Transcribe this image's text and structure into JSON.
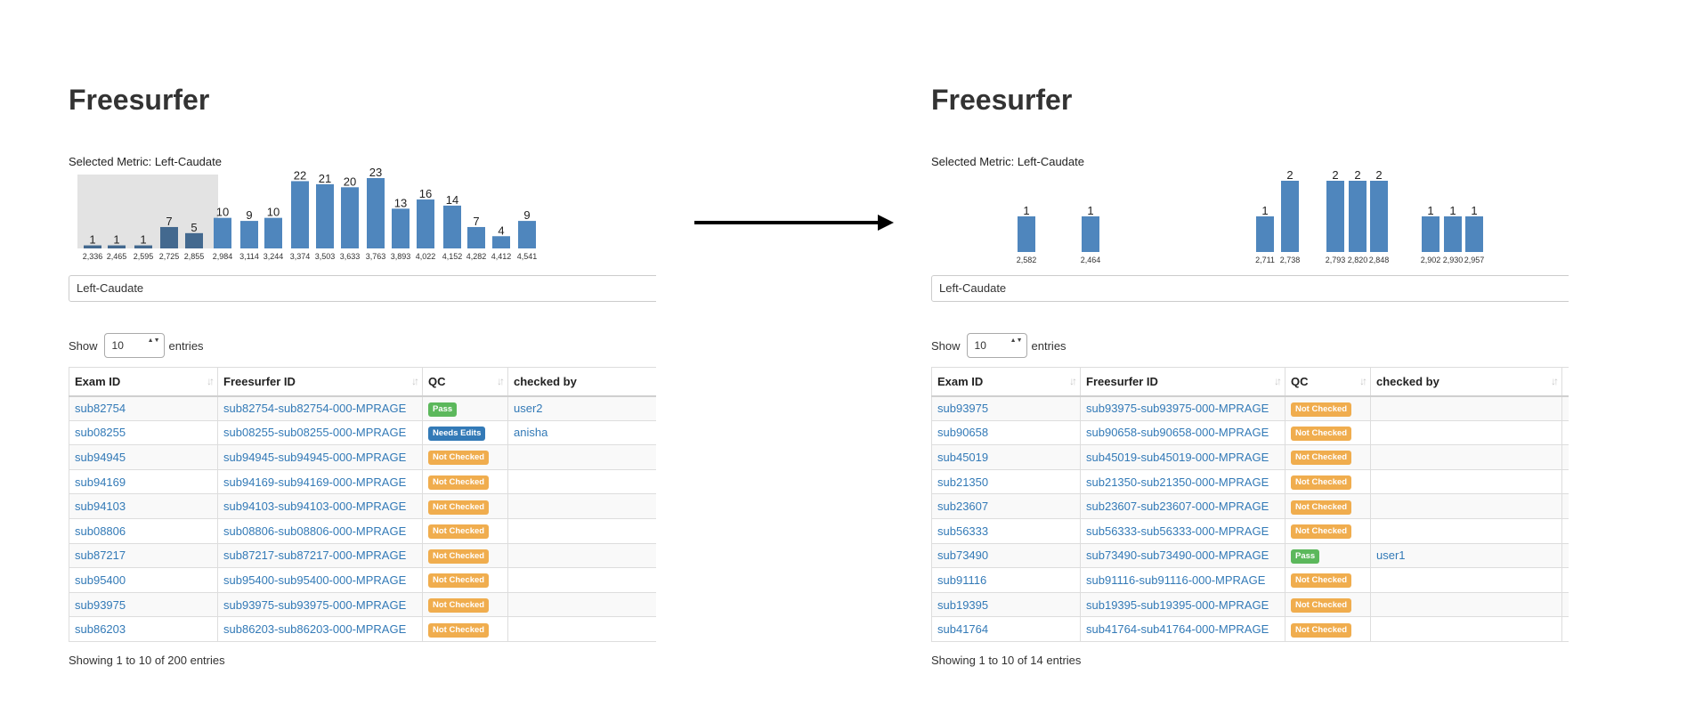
{
  "colors": {
    "bar": "#4f86bd",
    "bar_selected": "#43698f",
    "brush": "#e3e3e3",
    "link": "#337ab7",
    "pass": "#5cb85c",
    "needs_edits": "#337ab7",
    "not_checked": "#f0ad4e"
  },
  "panels": [
    {
      "title": "Freesurfer",
      "metric_label": "Selected Metric: Left-Caudate",
      "histogram": [
        {
          "count": "1",
          "tick": "2,336",
          "value": 1,
          "selected": true
        },
        {
          "count": "1",
          "tick": "2,465",
          "value": 1,
          "selected": true
        },
        {
          "count": "1",
          "tick": "2,595",
          "value": 1,
          "selected": true
        },
        {
          "count": "7",
          "tick": "2,725",
          "value": 7,
          "selected": true
        },
        {
          "count": "5",
          "tick": "2,855",
          "value": 5,
          "selected": true
        },
        {
          "count": "10",
          "tick": "2,984",
          "value": 10,
          "selected": false
        },
        {
          "count": "9",
          "tick": "3,114",
          "value": 9,
          "selected": false
        },
        {
          "count": "10",
          "tick": "3,244",
          "value": 10,
          "selected": false
        },
        {
          "count": "22",
          "tick": "3,374",
          "value": 22,
          "selected": false
        },
        {
          "count": "21",
          "tick": "3,503",
          "value": 21,
          "selected": false
        },
        {
          "count": "20",
          "tick": "3,633",
          "value": 20,
          "selected": false
        },
        {
          "count": "23",
          "tick": "3,763",
          "value": 23,
          "selected": false
        },
        {
          "count": "13",
          "tick": "3,893",
          "value": 13,
          "selected": false
        },
        {
          "count": "16",
          "tick": "4,022",
          "value": 16,
          "selected": false
        },
        {
          "count": "14",
          "tick": "4,152",
          "value": 14,
          "selected": false
        },
        {
          "count": "7",
          "tick": "4,282",
          "value": 7,
          "selected": false
        },
        {
          "count": "4",
          "tick": "4,412",
          "value": 4,
          "selected": false
        },
        {
          "count": "9",
          "tick": "4,541",
          "value": 9,
          "selected": false
        }
      ],
      "metric_select": "Left-Caudate",
      "length": {
        "show": "Show",
        "value": "10",
        "entries": "entries"
      },
      "columns": [
        "Exam ID",
        "Freesurfer ID",
        "QC",
        "checked by"
      ],
      "rows": [
        {
          "exam": "sub82754",
          "fs": "sub82754-sub82754-000-MPRAGE",
          "qc": "Pass",
          "qc_type": "pass",
          "by": "user2"
        },
        {
          "exam": "sub08255",
          "fs": "sub08255-sub08255-000-MPRAGE",
          "qc": "Needs Edits",
          "qc_type": "needs_edits",
          "by": "anisha"
        },
        {
          "exam": "sub94945",
          "fs": "sub94945-sub94945-000-MPRAGE",
          "qc": "Not Checked",
          "qc_type": "not_checked",
          "by": ""
        },
        {
          "exam": "sub94169",
          "fs": "sub94169-sub94169-000-MPRAGE",
          "qc": "Not Checked",
          "qc_type": "not_checked",
          "by": ""
        },
        {
          "exam": "sub94103",
          "fs": "sub94103-sub94103-000-MPRAGE",
          "qc": "Not Checked",
          "qc_type": "not_checked",
          "by": ""
        },
        {
          "exam": "sub08806",
          "fs": "sub08806-sub08806-000-MPRAGE",
          "qc": "Not Checked",
          "qc_type": "not_checked",
          "by": ""
        },
        {
          "exam": "sub87217",
          "fs": "sub87217-sub87217-000-MPRAGE",
          "qc": "Not Checked",
          "qc_type": "not_checked",
          "by": ""
        },
        {
          "exam": "sub95400",
          "fs": "sub95400-sub95400-000-MPRAGE",
          "qc": "Not Checked",
          "qc_type": "not_checked",
          "by": ""
        },
        {
          "exam": "sub93975",
          "fs": "sub93975-sub93975-000-MPRAGE",
          "qc": "Not Checked",
          "qc_type": "not_checked",
          "by": ""
        },
        {
          "exam": "sub86203",
          "fs": "sub86203-sub86203-000-MPRAGE",
          "qc": "Not Checked",
          "qc_type": "not_checked",
          "by": ""
        }
      ],
      "info": "Showing 1 to 10 of 200 entries"
    },
    {
      "title": "Freesurfer",
      "metric_label": "Selected Metric: Left-Caudate",
      "histogram": [
        {
          "count": "1",
          "tick": "2,582",
          "value": 1,
          "selected": false
        },
        {
          "count": "1",
          "tick": "2,464",
          "value": 1,
          "selected": false
        },
        {
          "count": "1",
          "tick": "2,711",
          "value": 1,
          "selected": false
        },
        {
          "count": "2",
          "tick": "2,738",
          "value": 2,
          "selected": false
        },
        {
          "count": "2",
          "tick": "2,793",
          "value": 2,
          "selected": false
        },
        {
          "count": "2",
          "tick": "2,820",
          "value": 2,
          "selected": false
        },
        {
          "count": "2",
          "tick": "2,848",
          "value": 2,
          "selected": false
        },
        {
          "count": "1",
          "tick": "2,902",
          "value": 1,
          "selected": false
        },
        {
          "count": "1",
          "tick": "2,930",
          "value": 1,
          "selected": false
        },
        {
          "count": "1",
          "tick": "2,957",
          "value": 1,
          "selected": false
        }
      ],
      "metric_select": "Left-Caudate",
      "length": {
        "show": "Show",
        "value": "10",
        "entries": "entries"
      },
      "columns": [
        "Exam ID",
        "Freesurfer ID",
        "QC",
        "checked by"
      ],
      "rows": [
        {
          "exam": "sub93975",
          "fs": "sub93975-sub93975-000-MPRAGE",
          "qc": "Not Checked",
          "qc_type": "not_checked",
          "by": ""
        },
        {
          "exam": "sub90658",
          "fs": "sub90658-sub90658-000-MPRAGE",
          "qc": "Not Checked",
          "qc_type": "not_checked",
          "by": ""
        },
        {
          "exam": "sub45019",
          "fs": "sub45019-sub45019-000-MPRAGE",
          "qc": "Not Checked",
          "qc_type": "not_checked",
          "by": ""
        },
        {
          "exam": "sub21350",
          "fs": "sub21350-sub21350-000-MPRAGE",
          "qc": "Not Checked",
          "qc_type": "not_checked",
          "by": ""
        },
        {
          "exam": "sub23607",
          "fs": "sub23607-sub23607-000-MPRAGE",
          "qc": "Not Checked",
          "qc_type": "not_checked",
          "by": ""
        },
        {
          "exam": "sub56333",
          "fs": "sub56333-sub56333-000-MPRAGE",
          "qc": "Not Checked",
          "qc_type": "not_checked",
          "by": ""
        },
        {
          "exam": "sub73490",
          "fs": "sub73490-sub73490-000-MPRAGE",
          "qc": "Pass",
          "qc_type": "pass",
          "by": "user1"
        },
        {
          "exam": "sub91116",
          "fs": "sub91116-sub91116-000-MPRAGE",
          "qc": "Not Checked",
          "qc_type": "not_checked",
          "by": ""
        },
        {
          "exam": "sub19395",
          "fs": "sub19395-sub19395-000-MPRAGE",
          "qc": "Not Checked",
          "qc_type": "not_checked",
          "by": ""
        },
        {
          "exam": "sub41764",
          "fs": "sub41764-sub41764-000-MPRAGE",
          "qc": "Not Checked",
          "qc_type": "not_checked",
          "by": ""
        }
      ],
      "info": "Showing 1 to 10 of 14 entries"
    }
  ]
}
